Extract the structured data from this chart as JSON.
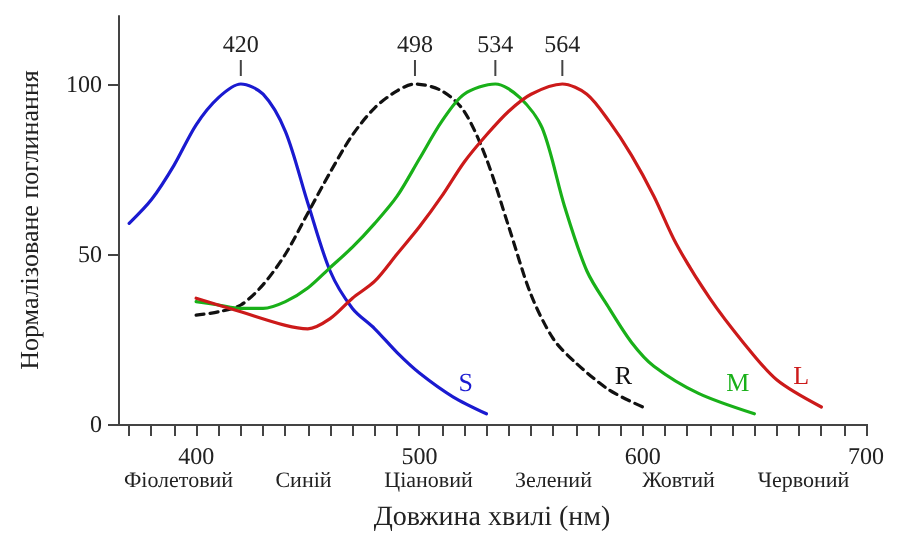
{
  "chart_data": {
    "type": "line",
    "xlabel": "Довжина хвилі (нм)",
    "ylabel": "Нормалізоване поглинання",
    "xlim": [
      365,
      700
    ],
    "ylim": [
      0,
      120
    ],
    "xticks": [
      {
        "value": 370,
        "label": null
      },
      {
        "value": 380,
        "label": null
      },
      {
        "value": 390,
        "label": null
      },
      400,
      {
        "value": 410,
        "label": null
      },
      {
        "value": 420,
        "label": null
      },
      {
        "value": 430,
        "label": null
      },
      {
        "value": 440,
        "label": null
      },
      {
        "value": 450,
        "label": null
      },
      {
        "value": 460,
        "label": null
      },
      {
        "value": 470,
        "label": null
      },
      {
        "value": 480,
        "label": null
      },
      {
        "value": 490,
        "label": null
      },
      500,
      {
        "value": 510,
        "label": null
      },
      {
        "value": 520,
        "label": null
      },
      {
        "value": 530,
        "label": null
      },
      {
        "value": 540,
        "label": null
      },
      {
        "value": 550,
        "label": null
      },
      {
        "value": 560,
        "label": null
      },
      {
        "value": 570,
        "label": null
      },
      {
        "value": 580,
        "label": null
      },
      {
        "value": 590,
        "label": null
      },
      600,
      {
        "value": 610,
        "label": null
      },
      {
        "value": 620,
        "label": null
      },
      {
        "value": 630,
        "label": null
      },
      {
        "value": 640,
        "label": null
      },
      {
        "value": 650,
        "label": null
      },
      {
        "value": 660,
        "label": null
      },
      {
        "value": 670,
        "label": null
      },
      {
        "value": 680,
        "label": null
      },
      {
        "value": 690,
        "label": null
      },
      700
    ],
    "yticks": [
      0,
      50,
      100
    ],
    "grid": false,
    "legend": false,
    "marker": "none",
    "series": [
      {
        "name": "S",
        "color": "#1a1ad0",
        "line_style": "solid",
        "x": [
          370,
          380,
          390,
          400,
          410,
          420,
          430,
          440,
          450,
          460,
          470,
          480,
          490,
          500,
          515,
          530
        ],
        "values": [
          59,
          66,
          76,
          88,
          96,
          100,
          97,
          86,
          65,
          45,
          34,
          28,
          21,
          15,
          8,
          3
        ]
      },
      {
        "name": "R",
        "color": "#111111",
        "line_style": "dashed",
        "x": [
          400,
          410,
          420,
          430,
          440,
          450,
          460,
          470,
          480,
          490,
          498,
          510,
          520,
          530,
          540,
          550,
          560,
          570,
          585,
          600
        ],
        "values": [
          32,
          33,
          35,
          41,
          50,
          62,
          74,
          85,
          93,
          98,
          100,
          98,
          92,
          78,
          58,
          38,
          25,
          18,
          10,
          5
        ]
      },
      {
        "name": "M",
        "color": "#19b019",
        "line_style": "solid",
        "x": [
          400,
          410,
          420,
          430,
          440,
          450,
          460,
          470,
          480,
          490,
          500,
          510,
          520,
          534,
          545,
          555,
          565,
          575,
          585,
          595,
          605,
          625,
          650
        ],
        "values": [
          36,
          35,
          34,
          34,
          36,
          40,
          46,
          52,
          59,
          67,
          78,
          89,
          97,
          100,
          96,
          87,
          64,
          45,
          34,
          24,
          17,
          9,
          3
        ]
      },
      {
        "name": "L",
        "color": "#cc1a1a",
        "line_style": "solid",
        "x": [
          400,
          420,
          440,
          450,
          460,
          470,
          480,
          490,
          500,
          510,
          520,
          530,
          540,
          550,
          564,
          575,
          585,
          595,
          605,
          615,
          630,
          645,
          660,
          680
        ],
        "values": [
          37,
          33,
          29,
          28,
          31,
          37,
          42,
          50,
          58,
          67,
          77,
          85,
          92,
          97,
          100,
          97,
          89,
          79,
          67,
          53,
          37,
          24,
          13,
          5
        ]
      }
    ],
    "annotations": [
      {
        "text": "420",
        "x": 420,
        "y": 100
      },
      {
        "text": "498",
        "x": 498,
        "y": 100
      },
      {
        "text": "534",
        "x": 534,
        "y": 100
      },
      {
        "text": "564",
        "x": 564,
        "y": 100
      },
      "Фіолетовий",
      "Синій",
      "Ціановий",
      "Зелений",
      "Жовтий",
      "Червоний"
    ]
  }
}
